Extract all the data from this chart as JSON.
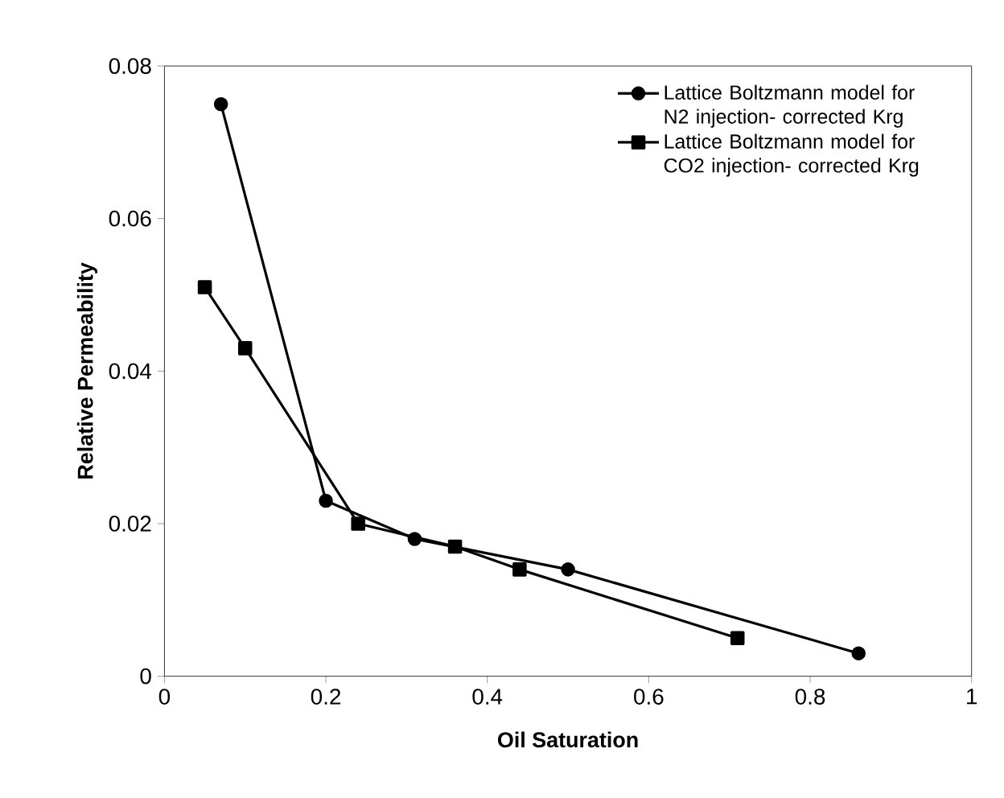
{
  "chart_data": {
    "type": "line",
    "xlabel": "Oil Saturation",
    "ylabel": "Relative Permeability",
    "xlim": [
      0,
      1
    ],
    "ylim": [
      0,
      0.08
    ],
    "xticks": [
      0,
      0.2,
      0.4,
      0.6,
      0.8,
      1
    ],
    "yticks": [
      0,
      0.02,
      0.04,
      0.06,
      0.08
    ],
    "grid": false,
    "legend": "top right",
    "line_style": "solid",
    "series": [
      {
        "name": "Lattice Boltzmann model for N2 injection- corrected Krg",
        "color": "#000000",
        "marker": "circle",
        "x": [
          0.07,
          0.2,
          0.31,
          0.5,
          0.86
        ],
        "values": [
          0.075,
          0.023,
          0.018,
          0.014,
          0.003
        ]
      },
      {
        "name": "Lattice Boltzmann model for CO2 injection- corrected Krg",
        "color": "#000000",
        "marker": "square",
        "x": [
          0.05,
          0.1,
          0.24,
          0.36,
          0.44,
          0.71
        ],
        "values": [
          0.051,
          0.043,
          0.02,
          0.017,
          0.014,
          0.005
        ]
      }
    ]
  }
}
